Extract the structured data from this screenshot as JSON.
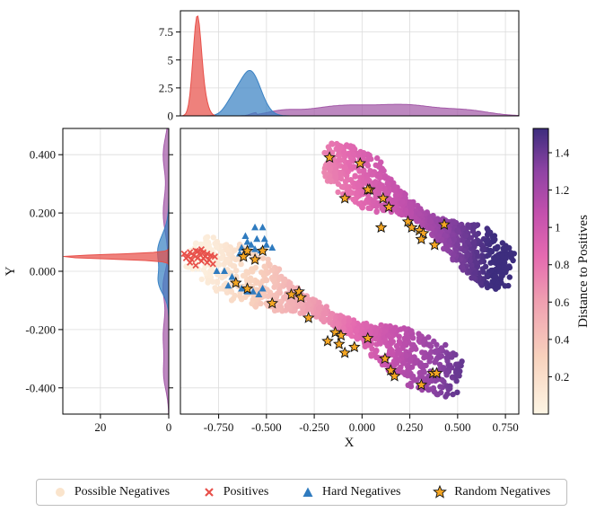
{
  "colors": {
    "positives": "#e8504a",
    "hard_negatives": "#2f7bbf",
    "random_negatives": "#f5a623",
    "kde_red": "#e8504a",
    "kde_blue": "#3a82c4",
    "kde_purple": "#a35aa8",
    "cmap": [
      "#fdf5e4",
      "#f8d2bd",
      "#ef9eb0",
      "#e56bb0",
      "#c451ad",
      "#8f43a4",
      "#3d2d7e"
    ]
  },
  "chart_data": {
    "type": "scatter",
    "xlabel": "X",
    "ylabel": "Y",
    "xlim": [
      -0.95,
      0.82
    ],
    "ylim": [
      -0.49,
      0.49
    ],
    "xticks": [
      "-0.750",
      "-0.500",
      "-0.250",
      "0.000",
      "0.250",
      "0.500",
      "0.750"
    ],
    "xtick_values": [
      -0.75,
      -0.5,
      -0.25,
      0.0,
      0.25,
      0.5,
      0.75
    ],
    "yticks": [
      "0.400",
      "0.200",
      "0.000",
      "-0.200",
      "-0.400"
    ],
    "ytick_values": [
      0.4,
      0.2,
      0.0,
      -0.2,
      -0.4
    ],
    "colorbar": {
      "label": "Distance to Positives",
      "range": [
        0.0,
        1.53
      ],
      "ticks": [
        "0.2",
        "0.4",
        "0.6",
        "0.8",
        "1",
        "1.2",
        "1.4"
      ],
      "tick_values": [
        0.2,
        0.4,
        0.6,
        0.8,
        1.0,
        1.2,
        1.4
      ]
    },
    "top_marginal": {
      "yticks": [
        "0",
        "2.5",
        "5",
        "7.5"
      ],
      "ytick_values": [
        0,
        2.5,
        5,
        7.5
      ],
      "ylim": [
        0,
        9.4
      ]
    },
    "left_marginal": {
      "xticks": [
        "20",
        "0"
      ],
      "xtick_values": [
        20,
        0
      ],
      "xlim": [
        31,
        0
      ]
    },
    "series": [
      {
        "name": "Possible Negatives",
        "kind": "cloud",
        "bands": [
          {
            "x0": -0.88,
            "y0": 0.07,
            "x1": 0.5,
            "y1": -0.37,
            "w": 0.09
          },
          {
            "x0": -0.18,
            "y0": 0.39,
            "x1": 0.76,
            "y1": 0.0,
            "w": 0.09
          }
        ]
      },
      {
        "name": "Positives",
        "points": [
          [
            -0.93,
            0.06
          ],
          [
            -0.91,
            0.05
          ],
          [
            -0.9,
            0.065
          ],
          [
            -0.89,
            0.04
          ],
          [
            -0.88,
            0.055
          ],
          [
            -0.87,
            0.07
          ],
          [
            -0.86,
            0.045
          ],
          [
            -0.85,
            0.06
          ],
          [
            -0.84,
            0.035
          ],
          [
            -0.83,
            0.065
          ],
          [
            -0.82,
            0.05
          ],
          [
            -0.81,
            0.06
          ],
          [
            -0.8,
            0.04
          ],
          [
            -0.79,
            0.055
          ],
          [
            -0.78,
            0.025
          ],
          [
            -0.9,
            0.03
          ],
          [
            -0.87,
            0.02
          ],
          [
            -0.84,
            0.075
          ],
          [
            -0.81,
            0.03
          ],
          [
            -0.77,
            0.05
          ],
          [
            -0.92,
            0.045
          ],
          [
            -0.86,
            0.068
          ],
          [
            -0.83,
            0.045
          ]
        ]
      },
      {
        "name": "Hard Negatives",
        "points": [
          [
            -0.56,
            0.15
          ],
          [
            -0.52,
            0.15
          ],
          [
            -0.61,
            0.12
          ],
          [
            -0.55,
            0.11
          ],
          [
            -0.63,
            0.08
          ],
          [
            -0.58,
            0.09
          ],
          [
            -0.5,
            0.09
          ],
          [
            -0.47,
            0.08
          ],
          [
            -0.64,
            0.06
          ],
          [
            -0.56,
            0.075
          ],
          [
            -0.53,
            0.07
          ],
          [
            -0.76,
            0.0
          ],
          [
            -0.72,
            0.0
          ],
          [
            -0.68,
            -0.02
          ],
          [
            -0.66,
            -0.04
          ],
          [
            -0.63,
            -0.06
          ],
          [
            -0.6,
            -0.07
          ],
          [
            -0.57,
            -0.07
          ],
          [
            -0.54,
            -0.08
          ],
          [
            -0.52,
            -0.06
          ],
          [
            -0.7,
            -0.05
          ],
          [
            -0.6,
            0.1
          ],
          [
            -0.51,
            0.11
          ]
        ]
      },
      {
        "name": "Random Negatives",
        "points": [
          [
            -0.17,
            0.39
          ],
          [
            -0.01,
            0.37
          ],
          [
            0.04,
            0.28
          ],
          [
            0.03,
            0.28
          ],
          [
            -0.09,
            0.25
          ],
          [
            0.11,
            0.25
          ],
          [
            0.14,
            0.22
          ],
          [
            0.24,
            0.17
          ],
          [
            0.26,
            0.15
          ],
          [
            0.3,
            0.14
          ],
          [
            0.32,
            0.13
          ],
          [
            0.43,
            0.16
          ],
          [
            0.1,
            0.15
          ],
          [
            0.31,
            0.11
          ],
          [
            0.38,
            0.09
          ],
          [
            -0.6,
            0.07
          ],
          [
            -0.52,
            0.07
          ],
          [
            -0.62,
            0.05
          ],
          [
            -0.56,
            0.04
          ],
          [
            -0.66,
            -0.04
          ],
          [
            -0.6,
            -0.06
          ],
          [
            -0.47,
            -0.11
          ],
          [
            -0.37,
            -0.08
          ],
          [
            -0.33,
            -0.07
          ],
          [
            -0.32,
            -0.09
          ],
          [
            -0.28,
            -0.16
          ],
          [
            -0.14,
            -0.21
          ],
          [
            -0.18,
            -0.24
          ],
          [
            -0.11,
            -0.22
          ],
          [
            -0.12,
            -0.25
          ],
          [
            -0.09,
            -0.28
          ],
          [
            -0.04,
            -0.26
          ],
          [
            0.03,
            -0.23
          ],
          [
            0.12,
            -0.3
          ],
          [
            0.15,
            -0.34
          ],
          [
            0.17,
            -0.36
          ],
          [
            0.31,
            -0.39
          ],
          [
            0.37,
            -0.35
          ],
          [
            0.39,
            -0.35
          ]
        ]
      }
    ]
  },
  "legend": {
    "items": [
      {
        "label": "Possible Negatives"
      },
      {
        "label": "Positives"
      },
      {
        "label": "Hard Negatives"
      },
      {
        "label": "Random Negatives"
      }
    ]
  }
}
